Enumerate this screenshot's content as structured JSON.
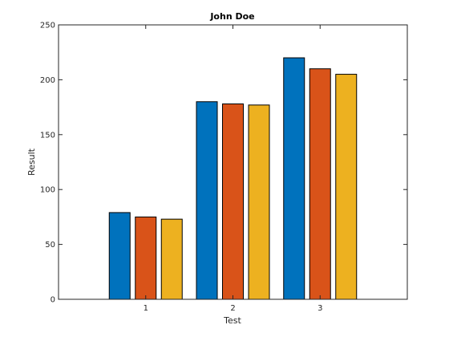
{
  "chart_data": {
    "type": "bar",
    "title": "John Doe",
    "xlabel": "Test",
    "ylabel": "Result",
    "categories": [
      "1",
      "2",
      "3"
    ],
    "ylim": [
      0,
      250
    ],
    "yticks": [
      0,
      50,
      100,
      150,
      200,
      250
    ],
    "grid": false,
    "series": [
      {
        "values": [
          79,
          180,
          220
        ],
        "color": "#0072bd"
      },
      {
        "values": [
          75,
          178,
          210
        ],
        "color": "#d95319"
      },
      {
        "values": [
          73,
          177,
          205
        ],
        "color": "#edb120"
      }
    ]
  }
}
